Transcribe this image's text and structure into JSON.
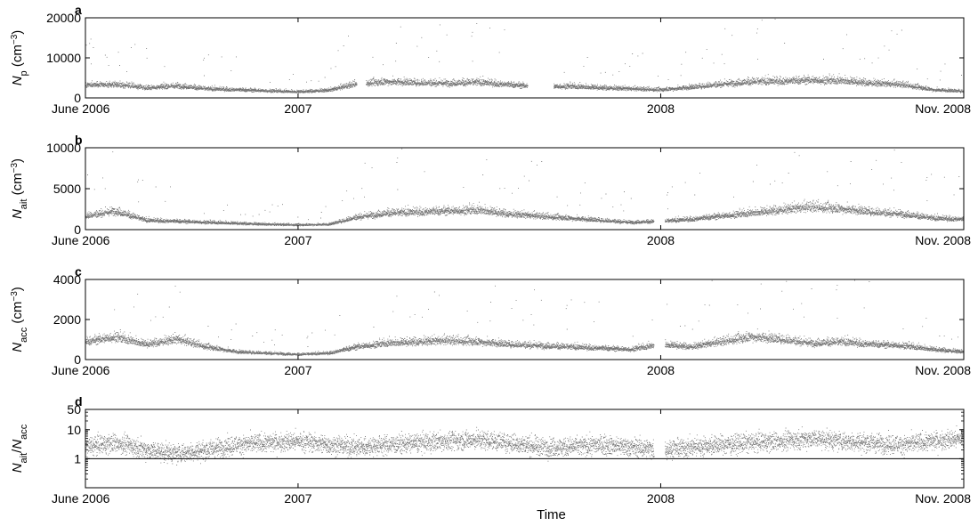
{
  "x_axis": {
    "label": "Time",
    "tick_labels": [
      "June 2006",
      "2007",
      "2008",
      "Nov. 2008"
    ],
    "tick_dates": [
      "2006-06-01",
      "2007-01-01",
      "2008-01-01",
      "2008-11-01"
    ]
  },
  "chart_data": [
    {
      "type": "scatter",
      "panel_label": "a",
      "ylabel_symbol": "N",
      "ylabel_sub": "p",
      "ylabel_unit_open": " (cm",
      "ylabel_unit_sup": "−3",
      "ylabel_unit_close": ")",
      "ylim": [
        0,
        20000
      ],
      "scale": "linear",
      "yticks": [
        0,
        10000,
        20000
      ],
      "ytick_labels": [
        "0",
        "10000",
        "20000"
      ],
      "point_color": "#444444",
      "gaps": [
        [
          "2007-03-01",
          "2007-03-10"
        ],
        [
          "2007-08-20",
          "2007-09-15"
        ]
      ],
      "series": [
        {
          "x": [
            "2006-06-01",
            "2006-07-01",
            "2006-08-01",
            "2006-09-01",
            "2006-10-01",
            "2006-11-01",
            "2006-12-01",
            "2007-01-01",
            "2007-02-01",
            "2007-03-01",
            "2007-04-01",
            "2007-05-01",
            "2007-06-01",
            "2007-07-01",
            "2007-08-01",
            "2007-09-01",
            "2007-10-01",
            "2007-11-01",
            "2007-12-01",
            "2008-01-01",
            "2008-02-01",
            "2008-03-01",
            "2008-04-01",
            "2008-05-01",
            "2008-06-01",
            "2008-07-01",
            "2008-08-01",
            "2008-09-01",
            "2008-10-01",
            "2008-11-01"
          ],
          "y": [
            2500,
            2700,
            2000,
            2400,
            1800,
            1600,
            1400,
            1200,
            1500,
            2800,
            3200,
            3000,
            2900,
            3100,
            2600,
            2200,
            2300,
            2000,
            1800,
            1600,
            2100,
            2700,
            3200,
            3300,
            3500,
            3400,
            2900,
            2600,
            1600,
            1300
          ]
        }
      ]
    },
    {
      "type": "scatter",
      "panel_label": "b",
      "ylabel_symbol": "N",
      "ylabel_sub": "ait",
      "ylabel_unit_open": " (cm",
      "ylabel_unit_sup": "−3",
      "ylabel_unit_close": ")",
      "ylim": [
        0,
        10000
      ],
      "scale": "linear",
      "yticks": [
        0,
        5000,
        10000
      ],
      "ytick_labels": [
        "0",
        "5000",
        "10000"
      ],
      "point_color": "#444444",
      "gaps": [
        [
          "2007-12-25",
          "2008-01-05"
        ]
      ],
      "series": [
        {
          "x": [
            "2006-06-01",
            "2006-07-01",
            "2006-08-01",
            "2006-09-01",
            "2006-10-01",
            "2006-11-01",
            "2006-12-01",
            "2007-01-01",
            "2007-02-01",
            "2007-03-01",
            "2007-04-01",
            "2007-05-01",
            "2007-06-01",
            "2007-07-01",
            "2007-08-01",
            "2007-09-01",
            "2007-10-01",
            "2007-11-01",
            "2007-12-01",
            "2008-01-01",
            "2008-02-01",
            "2008-03-01",
            "2008-04-01",
            "2008-05-01",
            "2008-06-01",
            "2008-07-01",
            "2008-08-01",
            "2008-09-01",
            "2008-10-01",
            "2008-11-01"
          ],
          "y": [
            1300,
            1800,
            900,
            800,
            700,
            600,
            500,
            450,
            500,
            1200,
            1600,
            1700,
            1800,
            1900,
            1500,
            1300,
            1100,
            900,
            700,
            800,
            1000,
            1300,
            1600,
            1900,
            2200,
            2000,
            1700,
            1500,
            1100,
            1000
          ]
        }
      ]
    },
    {
      "type": "scatter",
      "panel_label": "c",
      "ylabel_symbol": "N",
      "ylabel_sub": "acc",
      "ylabel_unit_open": " (cm",
      "ylabel_unit_sup": "−3",
      "ylabel_unit_close": ")",
      "ylim": [
        0,
        4000
      ],
      "scale": "linear",
      "yticks": [
        0,
        2000,
        4000
      ],
      "ytick_labels": [
        "0",
        "2000",
        "4000"
      ],
      "point_color": "#444444",
      "gaps": [
        [
          "2007-12-25",
          "2008-01-05"
        ]
      ],
      "series": [
        {
          "x": [
            "2006-06-01",
            "2006-07-01",
            "2006-08-01",
            "2006-09-01",
            "2006-10-01",
            "2006-11-01",
            "2006-12-01",
            "2007-01-01",
            "2007-02-01",
            "2007-03-01",
            "2007-04-01",
            "2007-05-01",
            "2007-06-01",
            "2007-07-01",
            "2007-08-01",
            "2007-09-01",
            "2007-10-01",
            "2007-11-01",
            "2007-12-01",
            "2008-01-01",
            "2008-02-01",
            "2008-03-01",
            "2008-04-01",
            "2008-05-01",
            "2008-06-01",
            "2008-07-01",
            "2008-08-01",
            "2008-09-01",
            "2008-10-01",
            "2008-11-01"
          ],
          "y": [
            700,
            900,
            600,
            800,
            500,
            300,
            250,
            200,
            250,
            500,
            650,
            700,
            750,
            700,
            600,
            550,
            500,
            450,
            400,
            600,
            500,
            700,
            900,
            800,
            650,
            700,
            600,
            550,
            400,
            300
          ]
        }
      ]
    },
    {
      "type": "scatter",
      "panel_label": "d",
      "ylabel_symbol": "N",
      "ylabel_sub": "ait",
      "ylabel_divider": "/",
      "ylabel_symbol2": "N",
      "ylabel_sub2": "acc",
      "ylim": [
        0.1,
        50
      ],
      "scale": "log",
      "yticks": [
        1,
        10,
        50
      ],
      "ytick_labels": [
        "1",
        "10",
        "50"
      ],
      "reference_line": 1,
      "point_color": "#444444",
      "gaps": [
        [
          "2007-12-25",
          "2008-01-05"
        ]
      ],
      "series": [
        {
          "x": [
            "2006-06-01",
            "2006-07-01",
            "2006-08-01",
            "2006-09-01",
            "2006-10-01",
            "2006-11-01",
            "2006-12-01",
            "2007-01-01",
            "2007-02-01",
            "2007-03-01",
            "2007-04-01",
            "2007-05-01",
            "2007-06-01",
            "2007-07-01",
            "2007-08-01",
            "2007-09-01",
            "2007-10-01",
            "2007-11-01",
            "2007-12-01",
            "2008-01-01",
            "2008-02-01",
            "2008-03-01",
            "2008-04-01",
            "2008-05-01",
            "2008-06-01",
            "2008-07-01",
            "2008-08-01",
            "2008-09-01",
            "2008-10-01",
            "2008-11-01"
          ],
          "y": [
            2.5,
            3.5,
            2,
            1.5,
            2,
            3,
            3.5,
            4,
            3,
            2.5,
            3,
            3.5,
            4,
            4.5,
            3.5,
            2.5,
            2.5,
            3,
            2.5,
            2,
            2.5,
            3,
            3.5,
            4,
            5,
            4,
            3.5,
            3,
            4,
            5
          ]
        }
      ]
    }
  ]
}
